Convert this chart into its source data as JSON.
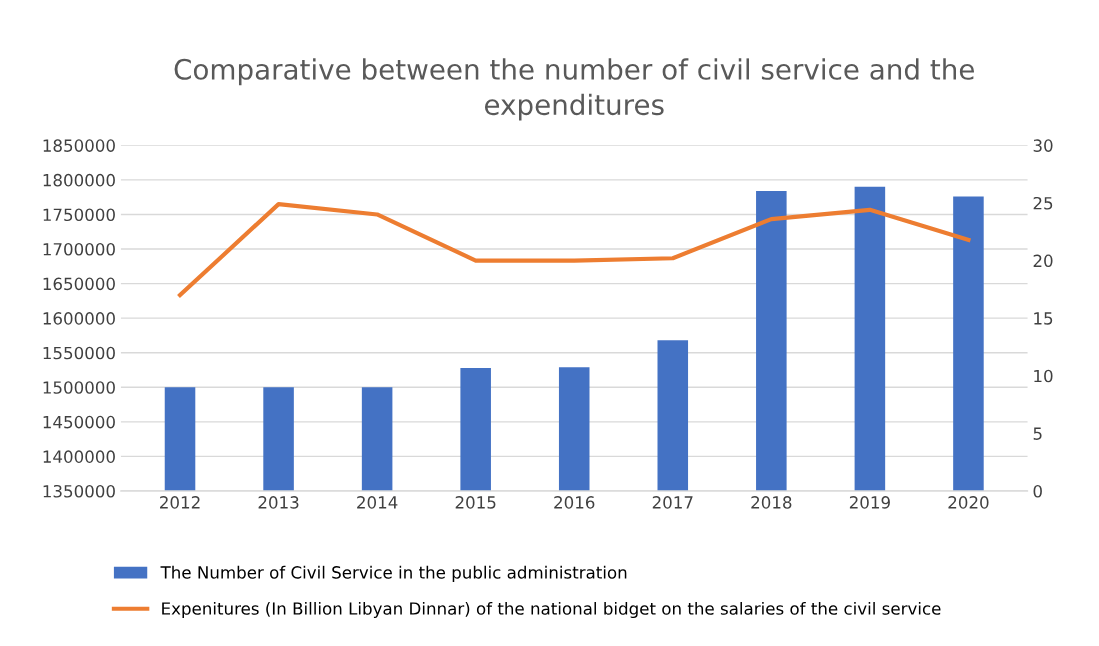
{
  "chart_data": {
    "type": "bar",
    "title": "Comparative between the number of civil service and the expenditures",
    "categories": [
      "2012",
      "2013",
      "2014",
      "2015",
      "2016",
      "2017",
      "2018",
      "2019",
      "2020"
    ],
    "series": [
      {
        "name": "The Number of Civil Service in the public administration",
        "color": "#4472c4",
        "values": [
          1500000,
          1500000,
          1500000,
          1528000,
          1529000,
          1568000,
          1784000,
          1790000,
          1776000
        ]
      },
      {
        "name": "Expenitures (In Billion Libyan Dinnar) of the national bidget on the salaries of the civil service",
        "type": "line",
        "axis": "y2",
        "color": "#ed7d31",
        "values": [
          17,
          24.9,
          24,
          20,
          20,
          20.2,
          23.6,
          24.4,
          21.8
        ]
      }
    ],
    "ylim": [
      1350000,
      1850000
    ],
    "yticks": [
      1350000,
      1400000,
      1450000,
      1500000,
      1550000,
      1600000,
      1650000,
      1700000,
      1750000,
      1800000,
      1850000
    ],
    "y2lim": [
      0,
      30
    ],
    "y2ticks": [
      0,
      5,
      10,
      15,
      20,
      25,
      30
    ],
    "grid": "y",
    "legend": "bottom",
    "marker": "none",
    "line_style": "solid"
  }
}
